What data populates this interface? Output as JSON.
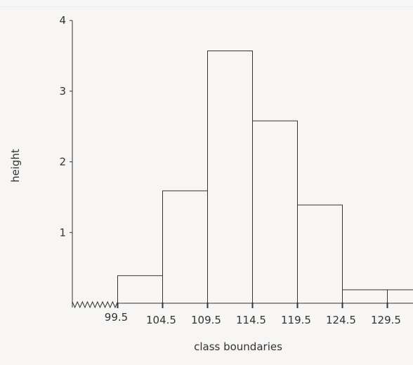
{
  "chart_data": {
    "type": "bar",
    "xlabel": "class boundaries",
    "ylabel": "height",
    "x_tick_labels": [
      "99.5",
      "104.5",
      "109.5",
      "114.5",
      "119.5",
      "124.5",
      "129.5"
    ],
    "y_tick_labels": [
      "1",
      "2",
      "3",
      "4"
    ],
    "ylim": [
      0,
      4
    ],
    "axis_break": "zigzag",
    "grid": false,
    "bins": [
      {
        "lower": 99.5,
        "upper": 104.5,
        "height": 0.39
      },
      {
        "lower": 104.5,
        "upper": 109.5,
        "height": 1.59
      },
      {
        "lower": 109.5,
        "upper": 114.5,
        "height": 3.57
      },
      {
        "lower": 114.5,
        "upper": 119.5,
        "height": 2.58
      },
      {
        "lower": 119.5,
        "upper": 124.5,
        "height": 1.39
      },
      {
        "lower": 124.5,
        "upper": 129.5,
        "height": 0.19
      },
      {
        "lower": 129.5,
        "upper": 134.5,
        "height": 0.19
      }
    ],
    "colors": {
      "bar_fill": "#f7f6f4",
      "bar_stroke": "#333333",
      "axis": "#333333"
    }
  }
}
